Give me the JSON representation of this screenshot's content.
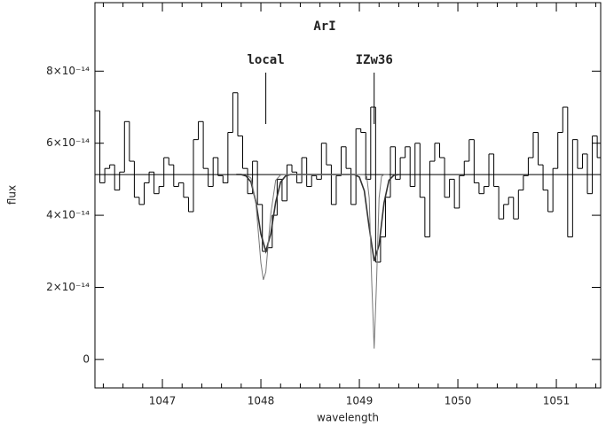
{
  "chart_data": {
    "type": "spectrum",
    "title": "ArI",
    "x_label": "wavelength",
    "y_label": "flux",
    "xlim": [
      1046.315,
      1051.45
    ],
    "ylim": [
      -7.9e-15,
      9.9e-14
    ],
    "xticks": [
      1047,
      1048,
      1049,
      1050,
      1051
    ],
    "xminorticks": [
      1046.4,
      1046.6,
      1046.8,
      1047.2,
      1047.4,
      1047.6,
      1047.8,
      1048.2,
      1048.4,
      1048.6,
      1048.8,
      1049.2,
      1049.4,
      1049.6,
      1049.8,
      1050.2,
      1050.4,
      1050.6,
      1050.8,
      1051.2,
      1051.4
    ],
    "yticks": [
      0,
      {
        "value": 2e-14,
        "label": "2×10⁻¹⁴"
      },
      {
        "value": 4e-14,
        "label": "4×10⁻¹⁴"
      },
      {
        "value": 6e-14,
        "label": "6×10⁻¹⁴"
      },
      {
        "value": 8e-14,
        "label": "8×10⁻¹⁴"
      }
    ],
    "continuum": 5.13e-14,
    "annotations": [
      {
        "text": "local",
        "x": 1048.05
      },
      {
        "text": "IZw36",
        "x": 1049.15
      }
    ],
    "series": [
      {
        "style": "step",
        "color": "#000000",
        "width": 1,
        "x": [
          1046.34,
          1046.39,
          1046.44,
          1046.49,
          1046.54,
          1046.59,
          1046.64,
          1046.69,
          1046.74,
          1046.79,
          1046.84,
          1046.89,
          1046.94,
          1046.99,
          1047.04,
          1047.09,
          1047.14,
          1047.19,
          1047.24,
          1047.29,
          1047.34,
          1047.39,
          1047.44,
          1047.49,
          1047.54,
          1047.59,
          1047.64,
          1047.69,
          1047.74,
          1047.79,
          1047.84,
          1047.89,
          1047.94,
          1047.99,
          1048.04,
          1048.09,
          1048.14,
          1048.19,
          1048.24,
          1048.29,
          1048.34,
          1048.39,
          1048.44,
          1048.49,
          1048.54,
          1048.59,
          1048.64,
          1048.69,
          1048.74,
          1048.79,
          1048.84,
          1048.89,
          1048.94,
          1048.99,
          1049.04,
          1049.09,
          1049.14,
          1049.19,
          1049.24,
          1049.29,
          1049.34,
          1049.39,
          1049.44,
          1049.49,
          1049.54,
          1049.59,
          1049.64,
          1049.69,
          1049.74,
          1049.79,
          1049.84,
          1049.89,
          1049.94,
          1049.99,
          1050.04,
          1050.09,
          1050.14,
          1050.19,
          1050.24,
          1050.29,
          1050.34,
          1050.39,
          1050.44,
          1050.49,
          1050.54,
          1050.59,
          1050.64,
          1050.69,
          1050.74,
          1050.79,
          1050.84,
          1050.89,
          1050.94,
          1050.99,
          1051.04,
          1051.09,
          1051.14,
          1051.19,
          1051.24,
          1051.29,
          1051.34,
          1051.39,
          1051.44
        ],
        "values": [
          6.9e-14,
          4.9e-14,
          5.3e-14,
          5.4e-14,
          4.7e-14,
          5.2e-14,
          6.6e-14,
          5.5e-14,
          4.5e-14,
          4.3e-14,
          4.9e-14,
          5.2e-14,
          4.6e-14,
          4.8e-14,
          5.6e-14,
          5.4e-14,
          4.8e-14,
          4.9e-14,
          4.5e-14,
          4.1e-14,
          6.1e-14,
          6.6e-14,
          5.3e-14,
          4.8e-14,
          5.6e-14,
          5.1e-14,
          4.9e-14,
          6.3e-14,
          7.4e-14,
          6.2e-14,
          5.3e-14,
          4.6e-14,
          5.5e-14,
          4.3e-14,
          3e-14,
          3.1e-14,
          4e-14,
          5e-14,
          4.4e-14,
          5.4e-14,
          5.2e-14,
          4.9e-14,
          5.6e-14,
          4.8e-14,
          5.1e-14,
          5e-14,
          6e-14,
          5.4e-14,
          4.3e-14,
          5.1e-14,
          5.9e-14,
          5.3e-14,
          4.3e-14,
          6.4e-14,
          6.3e-14,
          5e-14,
          7e-14,
          2.7e-14,
          3.4e-14,
          4.5e-14,
          5.9e-14,
          5e-14,
          5.6e-14,
          5.9e-14,
          4.8e-14,
          6e-14,
          4.5e-14,
          3.4e-14,
          5.5e-14,
          6e-14,
          5.6e-14,
          4.5e-14,
          5e-14,
          4.2e-14,
          5.1e-14,
          5.5e-14,
          6.1e-14,
          4.9e-14,
          4.6e-14,
          4.8e-14,
          5.7e-14,
          4.8e-14,
          3.9e-14,
          4.3e-14,
          4.5e-14,
          3.9e-14,
          4.7e-14,
          5.1e-14,
          5.6e-14,
          6.3e-14,
          5.4e-14,
          4.7e-14,
          4.1e-14,
          5.3e-14,
          6.3e-14,
          7e-14,
          3.4e-14,
          6.1e-14,
          5.3e-14,
          5.7e-14,
          4.6e-14,
          6.2e-14,
          5.6e-14
        ]
      },
      {
        "style": "line",
        "color": "#333333",
        "width": 1.6,
        "x": [
          1047.75,
          1047.8,
          1047.85,
          1047.9,
          1047.95,
          1048.0,
          1048.05,
          1048.1,
          1048.15,
          1048.2,
          1048.25,
          1048.3,
          1048.35,
          1048.4,
          1048.45,
          1048.5,
          1048.55,
          1048.6,
          1048.65,
          1048.7,
          1048.75,
          1048.8,
          1048.85,
          1048.9,
          1048.95,
          1049.0,
          1049.05,
          1049.1,
          1049.15,
          1049.2,
          1049.25,
          1049.3,
          1049.35,
          1049.4
        ],
        "values": [
          5.13e-14,
          5.13e-14,
          5.09e-14,
          4.92e-14,
          4.36e-14,
          3.48e-14,
          3e-14,
          3.48e-14,
          4.36e-14,
          4.92e-14,
          5.09e-14,
          5.13e-14,
          5.13e-14,
          5.13e-14,
          5.13e-14,
          5.13e-14,
          5.13e-14,
          5.13e-14,
          5.13e-14,
          5.13e-14,
          5.13e-14,
          5.13e-14,
          5.13e-14,
          5.13e-14,
          5.13e-14,
          5.06e-14,
          4.68e-14,
          3.66e-14,
          2.73e-14,
          3.18e-14,
          4.34e-14,
          4.97e-14,
          5.11e-14,
          5.13e-14
        ]
      },
      {
        "style": "line",
        "color": "#777777",
        "width": 1,
        "x": [
          1047.85,
          1047.9,
          1047.95,
          1048.0,
          1048.025,
          1048.05,
          1048.1,
          1048.15,
          1048.2,
          1048.25,
          1049.0,
          1049.05,
          1049.075,
          1049.1,
          1049.125,
          1049.15,
          1049.175,
          1049.2,
          1049.225,
          1049.25,
          1049.3
        ],
        "values": [
          5.13e-14,
          5.03e-14,
          4.32e-14,
          2.68e-14,
          2.21e-14,
          2.43e-14,
          4.03e-14,
          4.97e-14,
          5.12e-14,
          5.13e-14,
          5.13e-14,
          5.13e-14,
          5.08e-14,
          4.48e-14,
          2.2e-14,
          3e-15,
          2.2e-14,
          4.48e-14,
          5.08e-14,
          5.13e-14,
          5.13e-14
        ]
      }
    ]
  }
}
